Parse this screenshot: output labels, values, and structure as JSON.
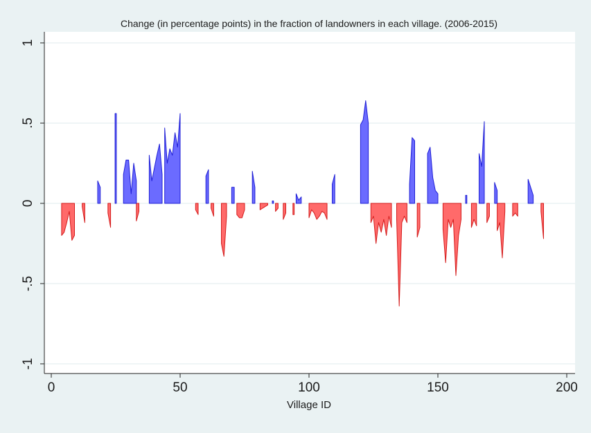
{
  "chart_data": {
    "type": "area",
    "title": "Change (in percentage points) in the fraction of landowners in each village. (2006-2015)",
    "xlabel": "Village ID",
    "ylabel": "",
    "xlim": [
      0,
      200
    ],
    "ylim": [
      -1,
      1
    ],
    "x_ticks": [
      {
        "value": 0,
        "label": "0"
      },
      {
        "value": 50,
        "label": "50"
      },
      {
        "value": 100,
        "label": "100"
      },
      {
        "value": 150,
        "label": "150"
      },
      {
        "value": 200,
        "label": "200"
      }
    ],
    "y_ticks": [
      {
        "value": 1,
        "label": "1"
      },
      {
        "value": 0.5,
        "label": ".5"
      },
      {
        "value": 0,
        "label": "0"
      },
      {
        "value": -0.5,
        "label": "-.5"
      },
      {
        "value": -1,
        "label": "-1"
      }
    ],
    "grid": "horizontal",
    "legend": "none",
    "colors": {
      "positive_fill": "#6b6bff",
      "positive_stroke": "#1f1fd6",
      "negative_fill": "#ff6a6a",
      "negative_stroke": "#d41c1c",
      "plot_background": "#ffffff",
      "page_background": "#eaf2f3",
      "grid": "#eaf2f3"
    },
    "series": [
      {
        "x": [
          4,
          5,
          6,
          7,
          8,
          9
        ],
        "y": [
          -0.2,
          -0.18,
          -0.12,
          -0.05,
          -0.23,
          -0.2
        ]
      },
      {
        "x": [
          12,
          13
        ],
        "y": [
          -0.02,
          -0.12
        ]
      },
      {
        "x": [
          22,
          23
        ],
        "y": [
          -0.06,
          -0.15
        ]
      },
      {
        "x": [
          33,
          34
        ],
        "y": [
          -0.11,
          -0.05
        ]
      },
      {
        "x": [
          56,
          57
        ],
        "y": [
          -0.04,
          -0.07
        ]
      },
      {
        "x": [
          62,
          63
        ],
        "y": [
          -0.03,
          -0.08
        ]
      },
      {
        "x": [
          66,
          67,
          68
        ],
        "y": [
          -0.25,
          -0.33,
          -0.08
        ]
      },
      {
        "x": [
          72,
          73,
          74,
          75
        ],
        "y": [
          -0.07,
          -0.09,
          -0.09,
          -0.04
        ]
      },
      {
        "x": [
          81,
          82,
          83,
          84
        ],
        "y": [
          -0.04,
          -0.03,
          -0.02,
          -0.01
        ]
      },
      {
        "x": [
          87,
          88
        ],
        "y": [
          -0.05,
          -0.03
        ]
      },
      {
        "x": [
          90,
          91
        ],
        "y": [
          -0.1,
          -0.06
        ]
      },
      {
        "x": [
          94
        ],
        "y": [
          -0.07
        ]
      },
      {
        "x": [
          100,
          101,
          102,
          103,
          104,
          105,
          106,
          107
        ],
        "y": [
          -0.09,
          -0.04,
          -0.06,
          -0.1,
          -0.08,
          -0.05,
          -0.06,
          -0.1
        ]
      },
      {
        "x": [
          124,
          125,
          126,
          127,
          128,
          129,
          130,
          131,
          132
        ],
        "y": [
          -0.12,
          -0.08,
          -0.25,
          -0.12,
          -0.18,
          -0.1,
          -0.2,
          -0.08,
          -0.15
        ]
      },
      {
        "x": [
          134,
          135,
          136,
          137,
          138
        ],
        "y": [
          -0.1,
          -0.64,
          -0.12,
          -0.08,
          -0.12
        ]
      },
      {
        "x": [
          142,
          143
        ],
        "y": [
          -0.21,
          -0.15
        ]
      },
      {
        "x": [
          152,
          153,
          154,
          155,
          156,
          157,
          158,
          159
        ],
        "y": [
          -0.16,
          -0.37,
          -0.1,
          -0.15,
          -0.1,
          -0.45,
          -0.2,
          -0.1
        ]
      },
      {
        "x": [
          163,
          164,
          165
        ],
        "y": [
          -0.15,
          -0.1,
          -0.14
        ]
      },
      {
        "x": [
          169,
          170
        ],
        "y": [
          -0.12,
          -0.08
        ]
      },
      {
        "x": [
          173,
          174,
          175,
          176
        ],
        "y": [
          -0.17,
          -0.12,
          -0.34,
          -0.05
        ]
      },
      {
        "x": [
          179,
          180,
          181
        ],
        "y": [
          -0.08,
          -0.06,
          -0.08
        ]
      },
      {
        "x": [
          190,
          191
        ],
        "y": [
          -0.05,
          -0.22
        ]
      },
      {
        "x": [
          18,
          19
        ],
        "y": [
          0.14,
          0.1
        ]
      },
      {
        "x": [
          25
        ],
        "y": [
          0.56
        ]
      },
      {
        "x": [
          28,
          29,
          30,
          31,
          32,
          33
        ],
        "y": [
          0.18,
          0.27,
          0.27,
          0.06,
          0.25,
          0.14
        ]
      },
      {
        "x": [
          38,
          39,
          40,
          41,
          42,
          43
        ],
        "y": [
          0.3,
          0.14,
          0.22,
          0.3,
          0.37,
          0.18
        ]
      },
      {
        "x": [
          44,
          45,
          46,
          47,
          48,
          49,
          50
        ],
        "y": [
          0.47,
          0.25,
          0.34,
          0.3,
          0.44,
          0.35,
          0.56
        ]
      },
      {
        "x": [
          60,
          61
        ],
        "y": [
          0.17,
          0.21
        ]
      },
      {
        "x": [
          70,
          71
        ],
        "y": [
          0.1,
          0.1
        ]
      },
      {
        "x": [
          78,
          79
        ],
        "y": [
          0.2,
          0.1
        ]
      },
      {
        "x": [
          86
        ],
        "y": [
          0.015
        ]
      },
      {
        "x": [
          95,
          96,
          97
        ],
        "y": [
          0.06,
          0.02,
          0.04
        ]
      },
      {
        "x": [
          109,
          110
        ],
        "y": [
          0.12,
          0.18
        ]
      },
      {
        "x": [
          120,
          121,
          122,
          123
        ],
        "y": [
          0.49,
          0.52,
          0.64,
          0.5
        ]
      },
      {
        "x": [
          139,
          140,
          141
        ],
        "y": [
          0.12,
          0.41,
          0.39
        ]
      },
      {
        "x": [
          146,
          147,
          148,
          149,
          150
        ],
        "y": [
          0.31,
          0.35,
          0.16,
          0.08,
          0.06
        ]
      },
      {
        "x": [
          161
        ],
        "y": [
          0.05
        ]
      },
      {
        "x": [
          166,
          167,
          168
        ],
        "y": [
          0.31,
          0.23,
          0.51
        ]
      },
      {
        "x": [
          172,
          173
        ],
        "y": [
          0.13,
          0.08
        ]
      },
      {
        "x": [
          185,
          186,
          187
        ],
        "y": [
          0.15,
          0.1,
          0.05
        ]
      }
    ]
  }
}
